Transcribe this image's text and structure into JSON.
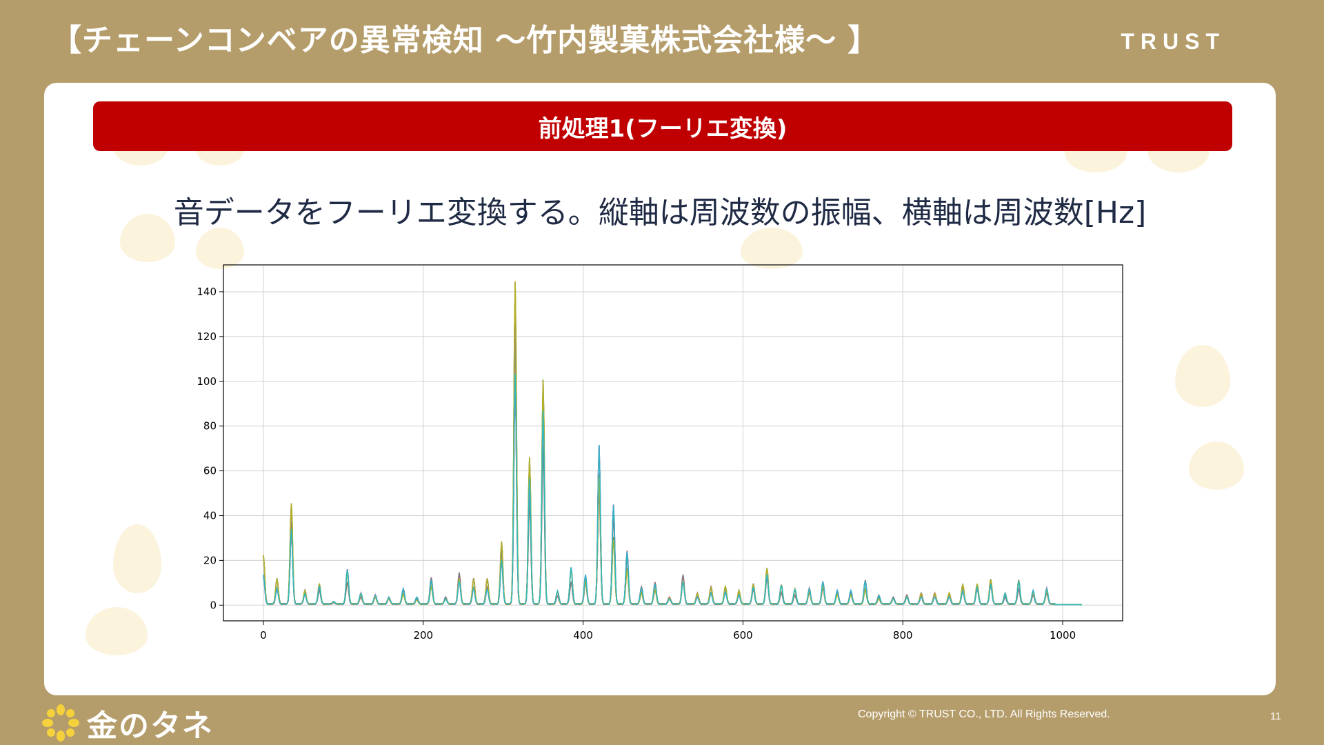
{
  "slide": {
    "title": "【チェーンコンベアの異常検知 ～竹内製菓株式会社様～ 】",
    "brand": "TRUST",
    "section_heading": "前処理1(フーリエ変換)",
    "description": "音データをフーリエ変換する。縦軸は周波数の振幅、横軸は周波数[Hz]"
  },
  "footer": {
    "logo_text": "金のタネ",
    "copyright": "Copyright © TRUST CO., LTD. All Rights Reserved.",
    "page_number": "11"
  },
  "colors": {
    "background": "#b59d6b",
    "accent_red": "#c00000",
    "logo_flower": "#f5d23c"
  },
  "chart_data": {
    "type": "line",
    "title": "",
    "xlabel": "",
    "ylabel": "",
    "xlim": [
      -50,
      1075
    ],
    "ylim": [
      -7,
      152
    ],
    "xticks": [
      0,
      200,
      400,
      600,
      800,
      1000
    ],
    "yticks": [
      0,
      20,
      40,
      60,
      80,
      100,
      120,
      140
    ],
    "grid": true,
    "legend": "none",
    "x_range": [
      0,
      1024
    ],
    "series_colors": [
      "#1f77b4",
      "#ff7f0e",
      "#2ca02c",
      "#d62728",
      "#9467bd",
      "#8c564b",
      "#e377c2",
      "#7f7f7f",
      "#bcbd22",
      "#17becf"
    ],
    "peaks": [
      {
        "x": 0,
        "y": 23
      },
      {
        "x": 17,
        "y": 12
      },
      {
        "x": 35,
        "y": 45
      },
      {
        "x": 52,
        "y": 6
      },
      {
        "x": 70,
        "y": 9
      },
      {
        "x": 88,
        "y": 1
      },
      {
        "x": 105,
        "y": 16
      },
      {
        "x": 122,
        "y": 5
      },
      {
        "x": 140,
        "y": 4
      },
      {
        "x": 157,
        "y": 3
      },
      {
        "x": 175,
        "y": 7
      },
      {
        "x": 192,
        "y": 3
      },
      {
        "x": 210,
        "y": 12
      },
      {
        "x": 228,
        "y": 3
      },
      {
        "x": 245,
        "y": 14
      },
      {
        "x": 263,
        "y": 12
      },
      {
        "x": 280,
        "y": 12
      },
      {
        "x": 298,
        "y": 28
      },
      {
        "x": 315,
        "y": 145
      },
      {
        "x": 333,
        "y": 66
      },
      {
        "x": 350,
        "y": 101
      },
      {
        "x": 368,
        "y": 6
      },
      {
        "x": 385,
        "y": 17
      },
      {
        "x": 403,
        "y": 13
      },
      {
        "x": 420,
        "y": 71
      },
      {
        "x": 438,
        "y": 45
      },
      {
        "x": 455,
        "y": 24
      },
      {
        "x": 473,
        "y": 8
      },
      {
        "x": 490,
        "y": 10
      },
      {
        "x": 508,
        "y": 3
      },
      {
        "x": 525,
        "y": 13
      },
      {
        "x": 543,
        "y": 5
      },
      {
        "x": 560,
        "y": 8
      },
      {
        "x": 578,
        "y": 8
      },
      {
        "x": 595,
        "y": 6
      },
      {
        "x": 613,
        "y": 9
      },
      {
        "x": 630,
        "y": 16
      },
      {
        "x": 648,
        "y": 9
      },
      {
        "x": 665,
        "y": 7
      },
      {
        "x": 683,
        "y": 7
      },
      {
        "x": 700,
        "y": 10
      },
      {
        "x": 718,
        "y": 6
      },
      {
        "x": 735,
        "y": 6
      },
      {
        "x": 753,
        "y": 11
      },
      {
        "x": 770,
        "y": 4
      },
      {
        "x": 788,
        "y": 3
      },
      {
        "x": 805,
        "y": 4
      },
      {
        "x": 823,
        "y": 5
      },
      {
        "x": 840,
        "y": 5
      },
      {
        "x": 858,
        "y": 5
      },
      {
        "x": 875,
        "y": 9
      },
      {
        "x": 893,
        "y": 9
      },
      {
        "x": 910,
        "y": 11
      },
      {
        "x": 928,
        "y": 5
      },
      {
        "x": 945,
        "y": 11
      },
      {
        "x": 963,
        "y": 6
      },
      {
        "x": 980,
        "y": 7
      }
    ]
  }
}
